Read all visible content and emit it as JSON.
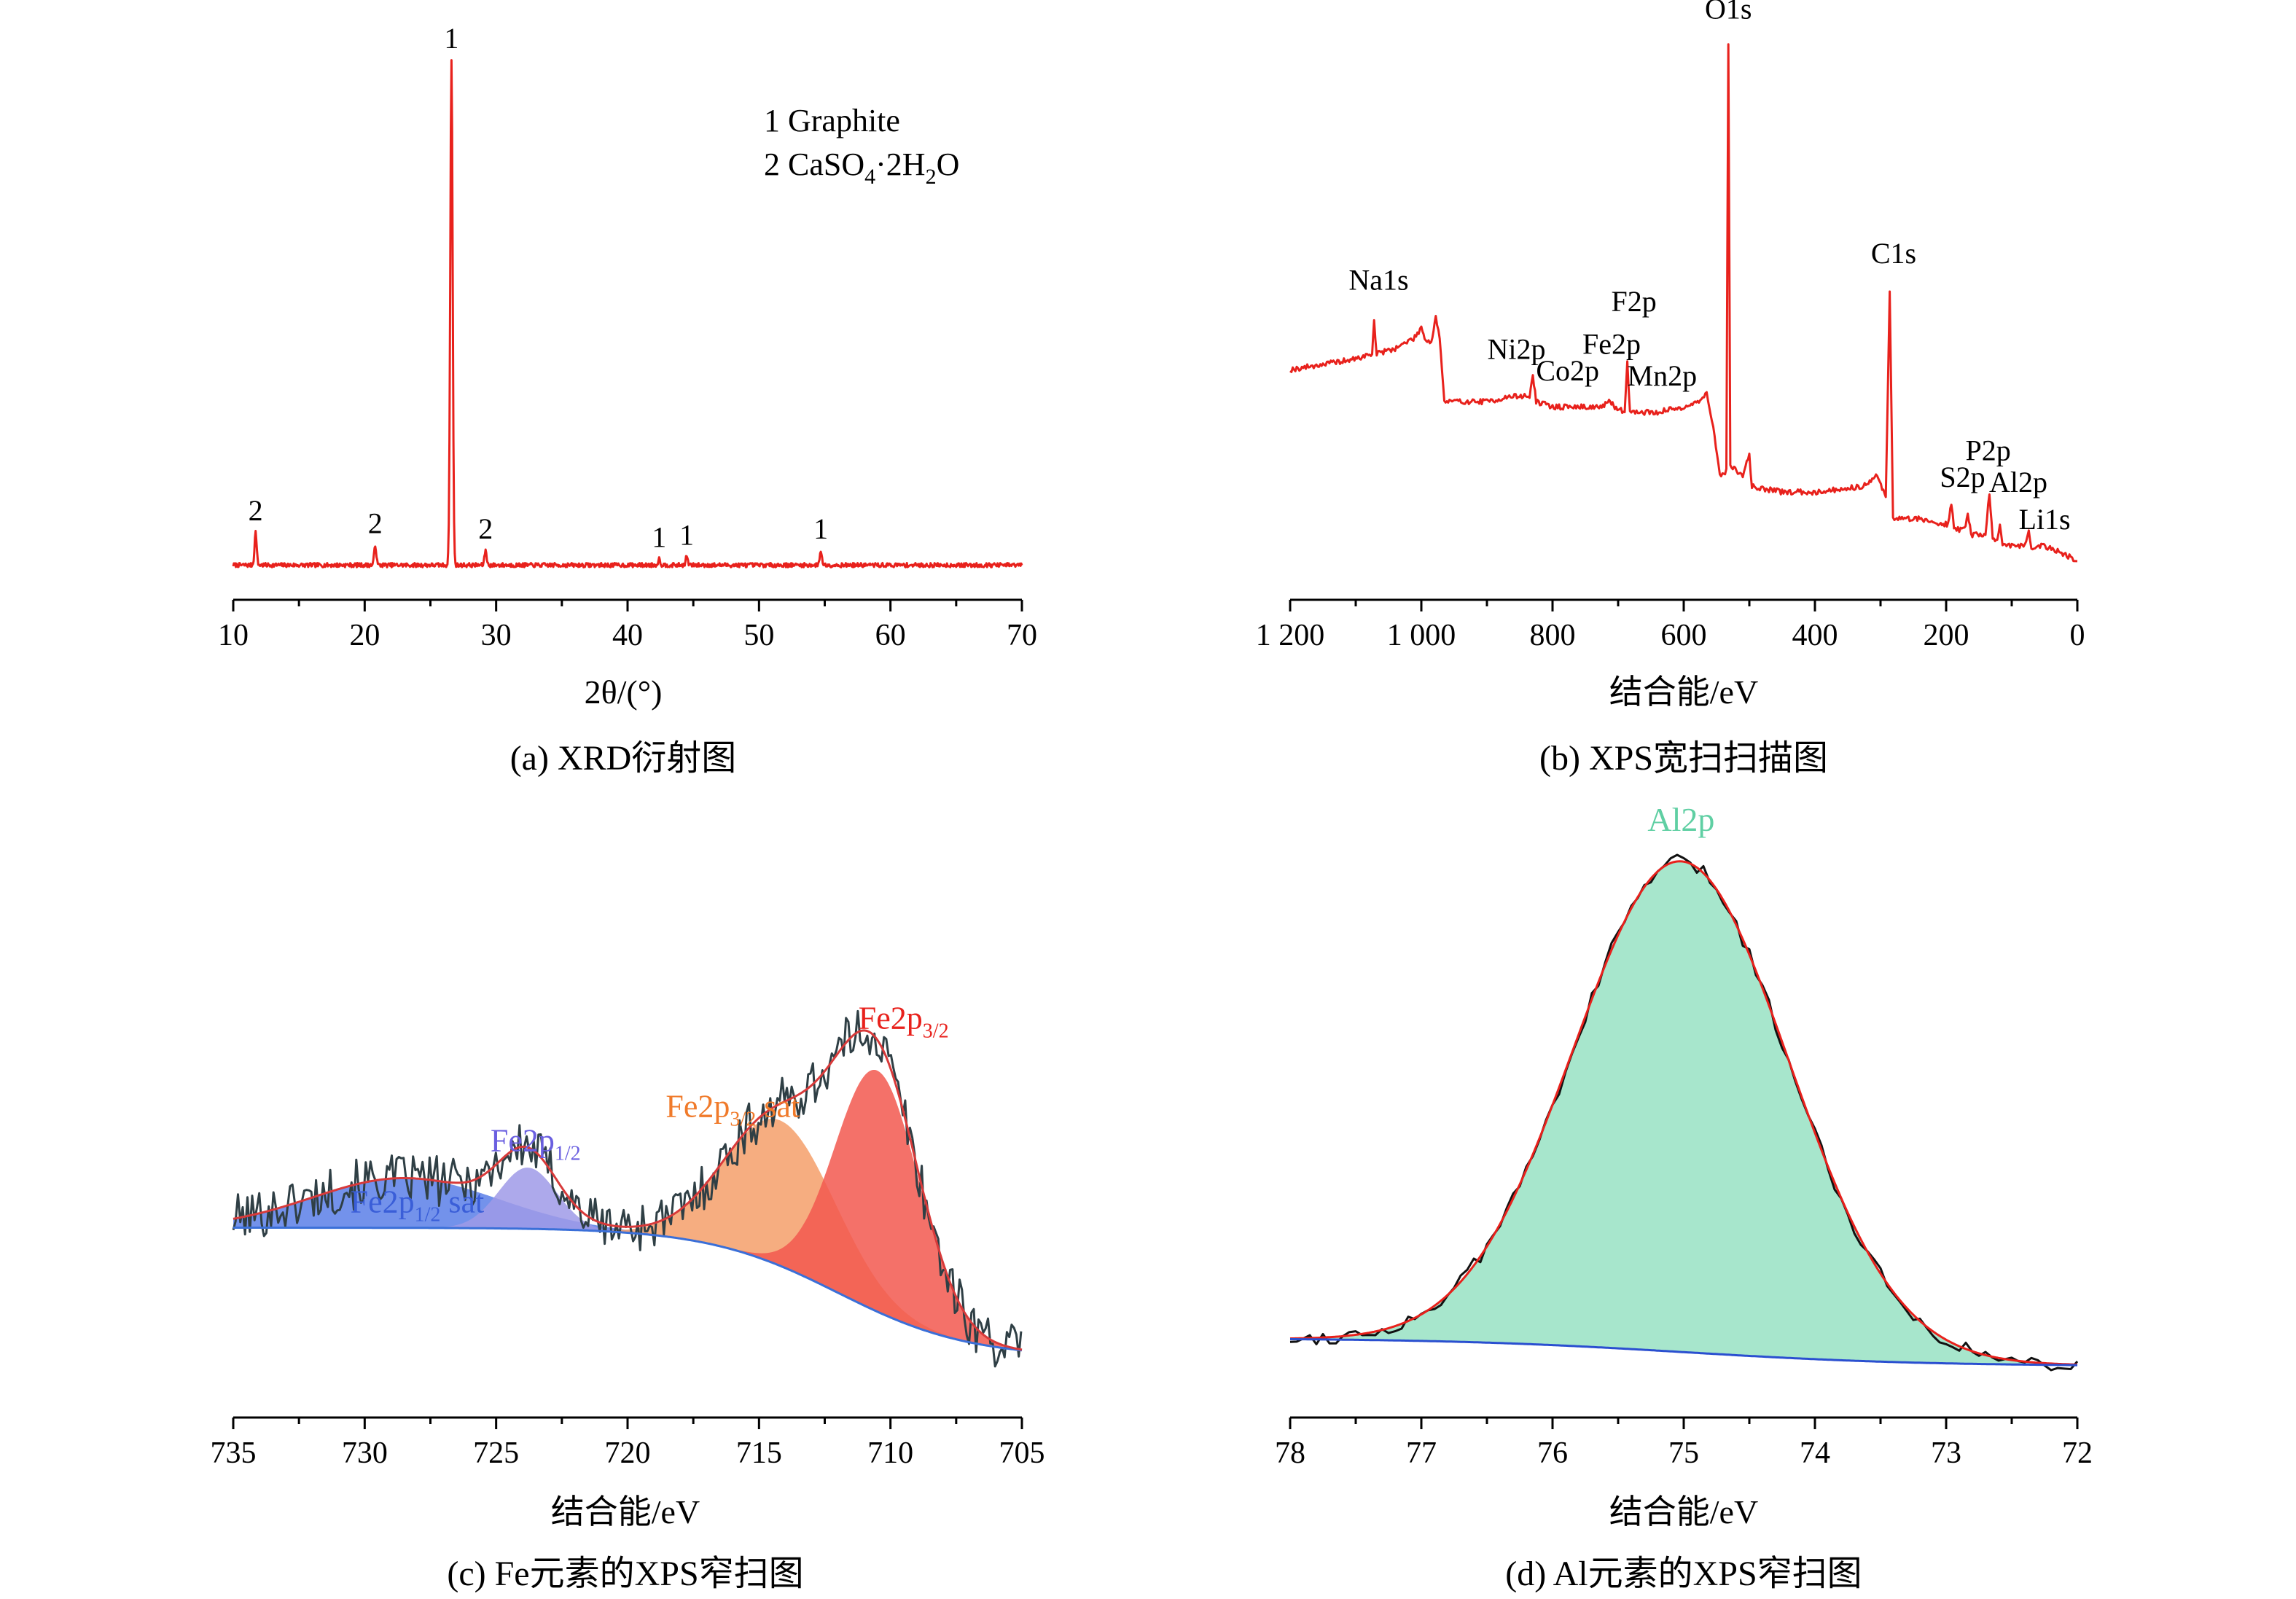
{
  "chart_data": [
    {
      "panel": "a",
      "type": "line",
      "caption": "(a) XRD衍射图",
      "xlabel": "2θ/(°)",
      "xlim": [
        10,
        70
      ],
      "xticks": [
        "10",
        "20",
        "30",
        "40",
        "50",
        "60",
        "70"
      ],
      "color": "#e8211c",
      "baseline": 0.08,
      "peaks": [
        {
          "x": 11.7,
          "h": 0.062,
          "label": "2"
        },
        {
          "x": 20.8,
          "h": 0.038,
          "label": "2"
        },
        {
          "x": 26.6,
          "h": 0.95,
          "label": "1"
        },
        {
          "x": 29.2,
          "h": 0.028,
          "label": "2"
        },
        {
          "x": 42.4,
          "h": 0.012,
          "label": "1"
        },
        {
          "x": 44.5,
          "h": 0.016,
          "label": "1"
        },
        {
          "x": 54.7,
          "h": 0.028,
          "label": "1"
        }
      ],
      "legend": [
        "1 Graphite",
        "2 CaSO4·2H2O"
      ],
      "legend_parts": {
        "line1": "1 Graphite",
        "line2_prefix": "2 CaSO",
        "sub1": "4",
        "dot": "·2H",
        "sub2": "2",
        "suffix": "O"
      }
    },
    {
      "panel": "b",
      "type": "line",
      "caption": "(b) XPS宽扫扫描图",
      "xlabel": "结合能/eV",
      "xlim": [
        1200,
        0
      ],
      "xticks": [
        "1 200",
        "1 000",
        "800",
        "600",
        "400",
        "200",
        "0"
      ],
      "color": "#e8211c",
      "trace": [
        {
          "x": 1200,
          "y": 0.36
        },
        {
          "x": 1150,
          "y": 0.37
        },
        {
          "x": 1100,
          "y": 0.38
        },
        {
          "x": 1075,
          "y": 0.39
        },
        {
          "x": 1072,
          "y": 0.45
        },
        {
          "x": 1068,
          "y": 0.39
        },
        {
          "x": 1040,
          "y": 0.4
        },
        {
          "x": 1010,
          "y": 0.42
        },
        {
          "x": 1000,
          "y": 0.44
        },
        {
          "x": 995,
          "y": 0.42
        },
        {
          "x": 985,
          "y": 0.41
        },
        {
          "x": 978,
          "y": 0.46
        },
        {
          "x": 972,
          "y": 0.42
        },
        {
          "x": 965,
          "y": 0.3
        },
        {
          "x": 900,
          "y": 0.3
        },
        {
          "x": 860,
          "y": 0.31
        },
        {
          "x": 835,
          "y": 0.31
        },
        {
          "x": 830,
          "y": 0.35
        },
        {
          "x": 825,
          "y": 0.3
        },
        {
          "x": 800,
          "y": 0.29
        },
        {
          "x": 760,
          "y": 0.29
        },
        {
          "x": 725,
          "y": 0.29
        },
        {
          "x": 712,
          "y": 0.3
        },
        {
          "x": 705,
          "y": 0.29
        },
        {
          "x": 690,
          "y": 0.28
        },
        {
          "x": 686,
          "y": 0.38
        },
        {
          "x": 682,
          "y": 0.28
        },
        {
          "x": 660,
          "y": 0.28
        },
        {
          "x": 640,
          "y": 0.28
        },
        {
          "x": 600,
          "y": 0.29
        },
        {
          "x": 575,
          "y": 0.3
        },
        {
          "x": 565,
          "y": 0.32
        },
        {
          "x": 555,
          "y": 0.25
        },
        {
          "x": 545,
          "y": 0.16
        },
        {
          "x": 535,
          "y": 0.17
        },
        {
          "x": 532,
          "y": 0.97
        },
        {
          "x": 529,
          "y": 0.18
        },
        {
          "x": 510,
          "y": 0.16
        },
        {
          "x": 500,
          "y": 0.2
        },
        {
          "x": 496,
          "y": 0.14
        },
        {
          "x": 450,
          "y": 0.13
        },
        {
          "x": 400,
          "y": 0.13
        },
        {
          "x": 330,
          "y": 0.14
        },
        {
          "x": 305,
          "y": 0.16
        },
        {
          "x": 292,
          "y": 0.12
        },
        {
          "x": 286,
          "y": 0.51
        },
        {
          "x": 281,
          "y": 0.08
        },
        {
          "x": 240,
          "y": 0.08
        },
        {
          "x": 210,
          "y": 0.07
        },
        {
          "x": 197,
          "y": 0.07
        },
        {
          "x": 192,
          "y": 0.11
        },
        {
          "x": 188,
          "y": 0.06
        },
        {
          "x": 172,
          "y": 0.06
        },
        {
          "x": 167,
          "y": 0.09
        },
        {
          "x": 162,
          "y": 0.05
        },
        {
          "x": 140,
          "y": 0.05
        },
        {
          "x": 134,
          "y": 0.13
        },
        {
          "x": 129,
          "y": 0.04
        },
        {
          "x": 122,
          "y": 0.04
        },
        {
          "x": 118,
          "y": 0.07
        },
        {
          "x": 114,
          "y": 0.03
        },
        {
          "x": 80,
          "y": 0.03
        },
        {
          "x": 74,
          "y": 0.06
        },
        {
          "x": 70,
          "y": 0.02
        },
        {
          "x": 55,
          "y": 0.03
        },
        {
          "x": 30,
          "y": 0.02
        },
        {
          "x": 0,
          "y": 0.0
        }
      ],
      "labels": [
        {
          "text": "Na1s",
          "x": 1065,
          "y": 0.51
        },
        {
          "text": "Ni2p",
          "x": 855,
          "y": 0.38
        },
        {
          "text": "Co2p",
          "x": 777,
          "y": 0.34
        },
        {
          "text": "Fe2p",
          "x": 710,
          "y": 0.39
        },
        {
          "text": "F2p",
          "x": 676,
          "y": 0.47
        },
        {
          "text": "Mn2p",
          "x": 633,
          "y": 0.33
        },
        {
          "text": "O1s",
          "x": 532,
          "y": 1.02
        },
        {
          "text": "C1s",
          "x": 280,
          "y": 0.56
        },
        {
          "text": "P2p",
          "x": 136,
          "y": 0.19
        },
        {
          "text": "S2p",
          "x": 175,
          "y": 0.14
        },
        {
          "text": "Al2p",
          "x": 90,
          "y": 0.13
        },
        {
          "text": "Li1s",
          "x": 50,
          "y": 0.06
        }
      ]
    },
    {
      "panel": "c",
      "type": "line",
      "caption": "(c) Fe元素的XPS窄扫图",
      "xlabel": "结合能/eV",
      "xlim": [
        735,
        705
      ],
      "xticks": [
        "735",
        "730",
        "725",
        "720",
        "715",
        "710",
        "705"
      ],
      "components": [
        {
          "name_main": "Fe2p",
          "name_sub": "1/2",
          "name_tail": " sat",
          "center": 728.5,
          "height": 0.13,
          "width": 3.5,
          "fill": "#5b7fe8",
          "label_color": "#3a5ed8",
          "label_x": 728.0,
          "label_y": 0.46
        },
        {
          "name_main": "Fe2p",
          "name_sub": "1/2",
          "name_tail": "",
          "center": 723.8,
          "height": 0.16,
          "width": 1.1,
          "fill": "#9f9ae8",
          "label_color": "#6a5fe0",
          "label_x": 723.5,
          "label_y": 0.62
        },
        {
          "name_main": "Fe2p",
          "name_sub": "3/2",
          "name_tail": " sat",
          "center": 714.2,
          "height": 0.38,
          "width": 2.1,
          "fill": "#f59f6a",
          "label_color": "#f07a2a",
          "label_x": 716.0,
          "label_y": 0.71
        },
        {
          "name_main": "Fe2p",
          "name_sub": "3/2",
          "name_tail": "",
          "center": 710.5,
          "height": 0.63,
          "width": 1.6,
          "fill": "#f2584f",
          "label_color": "#e8211c",
          "label_x": 709.5,
          "label_y": 0.94
        }
      ],
      "background": {
        "start": 0.42,
        "end": 0.08,
        "step_center": 712.0,
        "step_width": 2.5,
        "color": "#3a6fd8"
      },
      "envelope_color": "#d83a3a",
      "raw_color": "#2f3f45"
    },
    {
      "panel": "d",
      "type": "line",
      "caption": "(d) Al元素的XPS窄扫图",
      "xlabel": "结合能/eV",
      "xlim": [
        78,
        72
      ],
      "xticks": [
        "78",
        "77",
        "76",
        "75",
        "74",
        "73",
        "72"
      ],
      "peak": {
        "name": "Al2p",
        "center": 75.02,
        "height": 0.88,
        "width": 0.82,
        "fill": "#a7e6cc",
        "label_color": "#5fcfa3"
      },
      "background": {
        "start": 0.09,
        "end": 0.04,
        "step_center": 75.0,
        "step_width": 0.9,
        "color": "#2a4fd0"
      },
      "envelope_color": "#e8211c",
      "raw_color": "#111111"
    }
  ]
}
